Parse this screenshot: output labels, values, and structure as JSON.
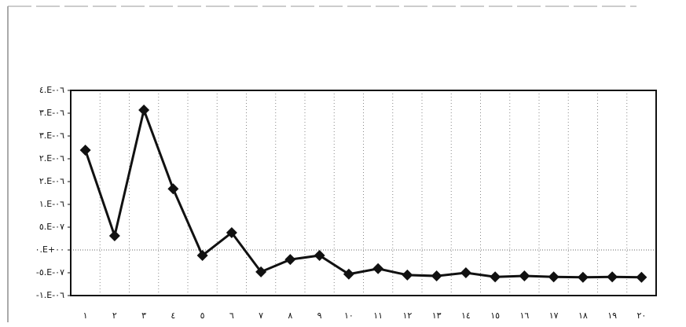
{
  "chart_data": {
    "type": "line",
    "categories": [
      "١",
      "٢",
      "٣",
      "٤",
      "٥",
      "٦",
      "٧",
      "٨",
      "٩",
      "١٠",
      "١١",
      "١٢",
      "١٣",
      "١٤",
      "١٥",
      "١٦",
      "١٧",
      "١٨",
      "١٩",
      "٢٠"
    ],
    "series": [
      {
        "color": "#111111",
        "values": [
          2.19e-06,
          3.1e-07,
          3.07e-06,
          1.34e-06,
          -1.2e-07,
          3.8e-07,
          -4.8e-07,
          -2.1e-07,
          -1.2e-07,
          -5.3e-07,
          -4.1e-07,
          -5.5e-07,
          -5.7e-07,
          -5e-07,
          -5.9e-07,
          -5.7e-07,
          -5.9e-07,
          -6e-07,
          -5.9e-07,
          -6e-07
        ]
      }
    ],
    "ylim": [
      -1e-06,
      3.5e-06
    ],
    "yticks": [
      {
        "value": 3.5e-06,
        "label": "٤.E-٠٦"
      },
      {
        "value": 3e-06,
        "label": "٣.E-٠٦"
      },
      {
        "value": 2.5e-06,
        "label": "٣.E-٠٦"
      },
      {
        "value": 2e-06,
        "label": "٢.E-٠٦"
      },
      {
        "value": 1.5e-06,
        "label": "٢.E-٠٦"
      },
      {
        "value": 1e-06,
        "label": "١.E-٠٦"
      },
      {
        "value": 5e-07,
        "label": "٥.E-٠٧"
      },
      {
        "value": 0,
        "label": "٠.E+٠٠"
      },
      {
        "value": -5e-07,
        "label": "-٥.E-٠٧"
      },
      {
        "value": -1e-06,
        "label": "-١.E-٠٦"
      }
    ],
    "grid": true
  }
}
